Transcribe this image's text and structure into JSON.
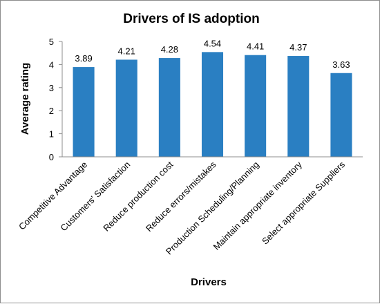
{
  "chart_data": {
    "type": "bar",
    "title": "Drivers of IS adoption",
    "xlabel": "Drivers",
    "ylabel": "Average rating",
    "categories": [
      "Competitive Advantage",
      "Customers' Satisfaction",
      "Reduce production cost",
      "Reduce errors/mistakes",
      "Production Scheduling/Planning",
      "Maintain appropriate inventory",
      "Select appropriate Suppliers"
    ],
    "values": [
      3.89,
      4.21,
      4.28,
      4.54,
      4.41,
      4.37,
      3.63
    ],
    "value_labels": [
      "3.89",
      "4.21",
      "4.28",
      "4.54",
      "4.41",
      "4.37",
      "3.63"
    ],
    "ylim": [
      0,
      5
    ],
    "yticks": [
      "0",
      "1",
      "2",
      "3",
      "4",
      "5"
    ],
    "grid": false,
    "legend": "none",
    "bar_color": "#2a7fc2"
  }
}
